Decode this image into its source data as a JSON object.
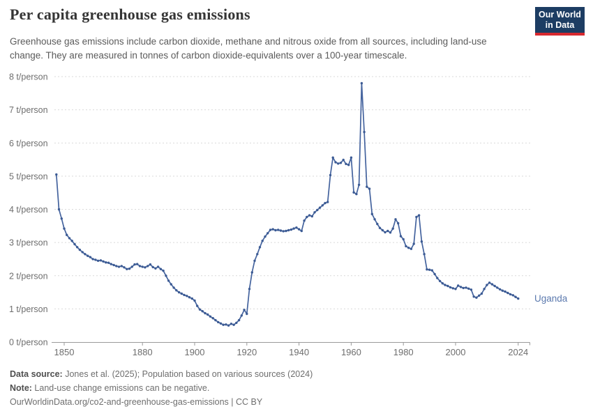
{
  "header": {
    "title": "Per capita greenhouse gas emissions",
    "subtitle": "Greenhouse gas emissions include carbon dioxide, methane and nitrous oxide from all sources, including land-use change. They are measured in tonnes of carbon dioxide-equivalents over a 100-year timescale."
  },
  "logo": {
    "line1": "Our World",
    "line2": "in Data",
    "bg_color": "#1d3d63",
    "accent_color": "#d7292f"
  },
  "chart_data": {
    "type": "line",
    "title": "Per capita greenhouse gas emissions",
    "xlabel": "",
    "ylabel": "t/person",
    "ylim": [
      0,
      8
    ],
    "xlim": [
      1845,
      2029
    ],
    "grid": "horizontal-dashed",
    "legend_position": "end-of-line-label",
    "ytick_labels": [
      "0 t/person",
      "1 t/person",
      "2 t/person",
      "3 t/person",
      "4 t/person",
      "5 t/person",
      "6 t/person",
      "7 t/person",
      "8 t/person"
    ],
    "xticks": [
      1850,
      1880,
      1900,
      1920,
      1940,
      1960,
      1980,
      2000,
      2024
    ],
    "series": [
      {
        "name": "Uganda",
        "color": "#44639e",
        "marker_color": "#3c5b94",
        "label_color": "#5b79ae",
        "start_year": 1847,
        "end_year": 2024,
        "values": [
          5.05,
          4.0,
          3.72,
          3.42,
          3.23,
          3.13,
          3.05,
          2.95,
          2.86,
          2.78,
          2.71,
          2.65,
          2.6,
          2.56,
          2.5,
          2.48,
          2.45,
          2.46,
          2.43,
          2.4,
          2.39,
          2.35,
          2.32,
          2.29,
          2.27,
          2.29,
          2.25,
          2.2,
          2.21,
          2.27,
          2.34,
          2.35,
          2.29,
          2.27,
          2.25,
          2.29,
          2.34,
          2.26,
          2.22,
          2.27,
          2.2,
          2.15,
          2.0,
          1.85,
          1.74,
          1.64,
          1.56,
          1.5,
          1.46,
          1.42,
          1.39,
          1.35,
          1.31,
          1.25,
          1.09,
          0.98,
          0.93,
          0.87,
          0.83,
          0.77,
          0.72,
          0.66,
          0.6,
          0.56,
          0.52,
          0.53,
          0.5,
          0.55,
          0.52,
          0.58,
          0.66,
          0.8,
          0.97,
          0.85,
          1.6,
          2.1,
          2.45,
          2.65,
          2.86,
          3.05,
          3.18,
          3.28,
          3.38,
          3.4,
          3.37,
          3.38,
          3.36,
          3.34,
          3.35,
          3.37,
          3.39,
          3.42,
          3.45,
          3.4,
          3.35,
          3.66,
          3.77,
          3.82,
          3.79,
          3.91,
          3.98,
          4.05,
          4.12,
          4.19,
          4.22,
          5.03,
          5.56,
          5.42,
          5.38,
          5.4,
          5.49,
          5.37,
          5.34,
          5.56,
          4.51,
          4.46,
          4.74,
          7.8,
          6.33,
          4.68,
          4.62,
          3.86,
          3.7,
          3.56,
          3.44,
          3.37,
          3.31,
          3.35,
          3.3,
          3.42,
          3.7,
          3.58,
          3.19,
          3.1,
          2.89,
          2.84,
          2.81,
          2.96,
          3.77,
          3.82,
          3.03,
          2.65,
          2.19,
          2.18,
          2.16,
          2.05,
          1.93,
          1.84,
          1.77,
          1.72,
          1.69,
          1.65,
          1.62,
          1.6,
          1.7,
          1.66,
          1.63,
          1.64,
          1.61,
          1.58,
          1.37,
          1.34,
          1.4,
          1.46,
          1.6,
          1.72,
          1.79,
          1.74,
          1.69,
          1.64,
          1.59,
          1.55,
          1.52,
          1.48,
          1.44,
          1.41,
          1.36,
          1.31
        ]
      }
    ]
  },
  "footer": {
    "data_source_label": "Data source:",
    "data_source_text": " Jones et al. (2025); Population based on various sources (2024)",
    "note_label": "Note:",
    "note_text": " Land-use change emissions can be negative.",
    "link_text": "OurWorldinData.org/co2-and-greenhouse-gas-emissions",
    "license_text": " | CC BY"
  },
  "colors": {
    "title": "#353535",
    "subtitle": "#5b5b5b",
    "axis_text": "#6e6e6e",
    "gridline": "#d9d9d9",
    "axis_line": "#999999"
  }
}
